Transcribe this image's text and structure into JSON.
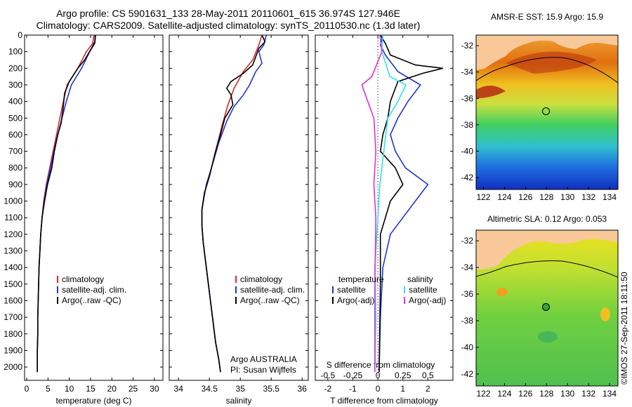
{
  "title_line1": "Argo profile: CS 5901631_133 28-May-2011 20110601_615 36.974S 127.946E",
  "title_line2": "Climatology: CARS2009. Satellite-adjusted climatology: synTS_20110530.nc (1.3d later)",
  "stamp": "©IMOS 27-Sep-2011 18:11:50",
  "colors": {
    "climatology": "#d62a2a",
    "satellite": "#1f35d6",
    "argo": "#000000",
    "magenta": "#e030e0",
    "cyan": "#30e0e8"
  },
  "chart_data": [
    {
      "type": "line",
      "name": "temperature-panel",
      "xlabel": "temperature (deg C)",
      "ylabel": "",
      "xlim": [
        -0.5,
        32
      ],
      "ylim": [
        0,
        2080
      ],
      "xticks": [
        0,
        5,
        10,
        15,
        20,
        25,
        30
      ],
      "yticks": [
        0,
        100,
        200,
        300,
        400,
        500,
        600,
        700,
        800,
        900,
        1000,
        1100,
        1200,
        1300,
        1400,
        1500,
        1600,
        1700,
        1800,
        1900,
        2000
      ],
      "legend": [
        "climatology",
        "satellite-adj. clim.",
        "Argo(..raw -QC)"
      ],
      "legend_position": "lower-center",
      "series": [
        {
          "name": "climatology",
          "color_key": "climatology",
          "points": [
            [
              15.8,
              0
            ],
            [
              15.5,
              50
            ],
            [
              14,
              100
            ],
            [
              12,
              200
            ],
            [
              9.5,
              300
            ],
            [
              8.6,
              400
            ],
            [
              7.8,
              500
            ],
            [
              7,
              600
            ],
            [
              6.2,
              700
            ],
            [
              5.4,
              800
            ],
            [
              4.6,
              900
            ],
            [
              4,
              1000
            ],
            [
              3.6,
              1100
            ],
            [
              3.3,
              1200
            ],
            [
              3.1,
              1300
            ],
            [
              2.9,
              1400
            ],
            [
              2.8,
              1500
            ],
            [
              2.7,
              1600
            ],
            [
              2.6,
              1700
            ],
            [
              2.6,
              1800
            ],
            [
              2.5,
              1900
            ],
            [
              2.5,
              2030
            ]
          ]
        },
        {
          "name": "satellite-adj. clim.",
          "color_key": "satellite",
          "points": [
            [
              16.2,
              0
            ],
            [
              16,
              50
            ],
            [
              14.8,
              100
            ],
            [
              12.9,
              200
            ],
            [
              10.5,
              300
            ],
            [
              9.3,
              400
            ],
            [
              8.3,
              500
            ],
            [
              7.3,
              600
            ],
            [
              6.4,
              700
            ],
            [
              5.6,
              800
            ],
            [
              4.7,
              900
            ],
            [
              4.1,
              1000
            ],
            [
              3.6,
              1100
            ],
            [
              3.3,
              1200
            ],
            [
              3.1,
              1300
            ],
            [
              2.9,
              1400
            ],
            [
              2.8,
              1500
            ],
            [
              2.7,
              1600
            ],
            [
              2.6,
              1700
            ],
            [
              2.6,
              1800
            ],
            [
              2.5,
              1900
            ],
            [
              2.5,
              2030
            ]
          ]
        },
        {
          "name": "Argo(..raw -QC)",
          "color_key": "argo",
          "points": [
            [
              16.1,
              0
            ],
            [
              16,
              40
            ],
            [
              15.2,
              80
            ],
            [
              13.6,
              150
            ],
            [
              12,
              200
            ],
            [
              10,
              280
            ],
            [
              8.9,
              350
            ],
            [
              8.5,
              450
            ],
            [
              8.1,
              530
            ],
            [
              7.3,
              600
            ],
            [
              6.5,
              700
            ],
            [
              5.9,
              800
            ],
            [
              4.9,
              900
            ],
            [
              4.2,
              1000
            ],
            [
              3.6,
              1100
            ],
            [
              3.3,
              1200
            ],
            [
              3.1,
              1300
            ],
            [
              2.9,
              1400
            ],
            [
              2.8,
              1500
            ],
            [
              2.7,
              1600
            ],
            [
              2.6,
              1700
            ],
            [
              2.6,
              1800
            ],
            [
              2.5,
              1900
            ],
            [
              2.5,
              2030
            ]
          ]
        }
      ]
    },
    {
      "type": "line",
      "name": "salinity-panel",
      "xlabel": "salinity",
      "xlim": [
        33.85,
        36.1
      ],
      "ylim": [
        0,
        2080
      ],
      "xticks": [
        34,
        34.5,
        35,
        35.5,
        36
      ],
      "yticks": [
        0,
        100,
        200,
        300,
        400,
        500,
        600,
        700,
        800,
        900,
        1000,
        1100,
        1200,
        1300,
        1400,
        1500,
        1600,
        1700,
        1800,
        1900,
        2000
      ],
      "legend": [
        "climatology",
        "satellite-adj. clim.",
        "Argo(..raw -QC)"
      ],
      "legend_position": "lower-center",
      "annotation": [
        "Argo AUSTRALIA",
        "PI: Susan Wijffels"
      ],
      "series": [
        {
          "name": "climatology",
          "color_key": "climatology",
          "points": [
            [
              35.35,
              0
            ],
            [
              35.3,
              60
            ],
            [
              35.2,
              150
            ],
            [
              35.05,
              220
            ],
            [
              34.9,
              320
            ],
            [
              34.8,
              420
            ],
            [
              34.7,
              550
            ],
            [
              34.6,
              700
            ],
            [
              34.5,
              850
            ],
            [
              34.42,
              950
            ],
            [
              34.38,
              1050
            ],
            [
              34.38,
              1150
            ],
            [
              34.4,
              1250
            ],
            [
              34.45,
              1400
            ],
            [
              34.5,
              1550
            ],
            [
              34.55,
              1700
            ],
            [
              34.6,
              1850
            ],
            [
              34.65,
              1950
            ],
            [
              34.68,
              2030
            ]
          ]
        },
        {
          "name": "satellite-adj. clim.",
          "color_key": "satellite",
          "points": [
            [
              35.42,
              0
            ],
            [
              35.38,
              60
            ],
            [
              35.3,
              100
            ],
            [
              35.35,
              170
            ],
            [
              35.25,
              220
            ],
            [
              35.15,
              300
            ],
            [
              35.05,
              360
            ],
            [
              34.9,
              430
            ],
            [
              34.78,
              520
            ],
            [
              34.65,
              650
            ],
            [
              34.55,
              780
            ],
            [
              34.45,
              900
            ],
            [
              34.38,
              1050
            ],
            [
              34.38,
              1150
            ],
            [
              34.4,
              1250
            ],
            [
              34.45,
              1400
            ],
            [
              34.5,
              1550
            ],
            [
              34.55,
              1700
            ],
            [
              34.6,
              1850
            ],
            [
              34.65,
              1950
            ],
            [
              34.68,
              2030
            ]
          ]
        },
        {
          "name": "Argo(..raw -QC)",
          "color_key": "argo",
          "points": [
            [
              35.35,
              0
            ],
            [
              35.4,
              40
            ],
            [
              35.3,
              80
            ],
            [
              35.25,
              130
            ],
            [
              35.2,
              180
            ],
            [
              35.05,
              230
            ],
            [
              34.85,
              280
            ],
            [
              34.78,
              320
            ],
            [
              34.85,
              360
            ],
            [
              34.88,
              420
            ],
            [
              34.75,
              500
            ],
            [
              34.68,
              600
            ],
            [
              34.6,
              700
            ],
            [
              34.5,
              850
            ],
            [
              34.42,
              950
            ],
            [
              34.38,
              1050
            ],
            [
              34.38,
              1150
            ],
            [
              34.4,
              1250
            ],
            [
              34.45,
              1400
            ],
            [
              34.5,
              1550
            ],
            [
              34.55,
              1700
            ],
            [
              34.6,
              1850
            ],
            [
              34.65,
              1950
            ],
            [
              34.68,
              2030
            ]
          ]
        }
      ]
    },
    {
      "type": "line",
      "name": "difference-panel",
      "xlabel_bottom": "T difference from climatology",
      "xlabel_top": "S difference from climatology",
      "xlim": [
        -2.5,
        3
      ],
      "ylim": [
        0,
        2080
      ],
      "xticks": [
        -2,
        -1,
        0,
        1,
        2
      ],
      "xtick_labels": [
        "-2",
        "-1",
        "0",
        "1",
        "2"
      ],
      "s_ticks": [
        -0.5,
        -0.25,
        0,
        0.25,
        0.5
      ],
      "s_tick_labels": [
        "-0.5",
        "-0.25",
        "0",
        "0.25",
        "0.5"
      ],
      "yticks": [
        0,
        100,
        200,
        300,
        400,
        500,
        600,
        700,
        800,
        900,
        1000,
        1100,
        1200,
        1300,
        1400,
        1500,
        1600,
        1700,
        1800,
        1900,
        2000
      ],
      "legend_left_title": "temperature",
      "legend_right_title": "salinity",
      "legend_left": [
        "satellite",
        "Argo(-adj)"
      ],
      "legend_right": [
        "satellite",
        "Argo(-adj)"
      ],
      "series": [
        {
          "name": "T satellite",
          "color_key": "satellite",
          "points": [
            [
              0.2,
              0
            ],
            [
              0.1,
              60
            ],
            [
              0.3,
              120
            ],
            [
              0.8,
              220
            ],
            [
              1.7,
              300
            ],
            [
              1.2,
              400
            ],
            [
              0.8,
              500
            ],
            [
              0.5,
              600
            ],
            [
              0.7,
              700
            ],
            [
              1.1,
              800
            ],
            [
              2.0,
              900
            ],
            [
              1.5,
              1000
            ],
            [
              0.5,
              1200
            ],
            [
              0.2,
              1400
            ],
            [
              0.1,
              1700
            ],
            [
              0.05,
              2030
            ]
          ]
        },
        {
          "name": "T Argo(-adj)",
          "color_key": "argo",
          "points": [
            [
              0.1,
              0
            ],
            [
              0.3,
              50
            ],
            [
              0.5,
              120
            ],
            [
              1.5,
              180
            ],
            [
              2.6,
              200
            ],
            [
              1.8,
              230
            ],
            [
              0.8,
              280
            ],
            [
              0.5,
              400
            ],
            [
              0.4,
              500
            ],
            [
              0.2,
              600
            ],
            [
              0.1,
              700
            ],
            [
              0.7,
              800
            ],
            [
              1.0,
              900
            ],
            [
              0.5,
              1000
            ],
            [
              0.1,
              1200
            ],
            [
              0.1,
              1500
            ],
            [
              0.05,
              2030
            ]
          ]
        },
        {
          "name": "S satellite",
          "color_key": "cyan",
          "points": [
            [
              0.05,
              0
            ],
            [
              0.04,
              100
            ],
            [
              0.12,
              250
            ],
            [
              0.28,
              300
            ],
            [
              0.2,
              400
            ],
            [
              0.1,
              500
            ],
            [
              0.06,
              700
            ],
            [
              0.02,
              900
            ],
            [
              0,
              1100
            ],
            [
              -0.03,
              1400
            ],
            [
              -0.02,
              1700
            ],
            [
              -0.03,
              2030
            ]
          ]
        },
        {
          "name": "S Argo(-adj)",
          "color_key": "magenta",
          "points": [
            [
              0.02,
              0
            ],
            [
              0.04,
              100
            ],
            [
              -0.06,
              250
            ],
            [
              -0.16,
              300
            ],
            [
              -0.1,
              400
            ],
            [
              -0.04,
              500
            ],
            [
              -0.02,
              700
            ],
            [
              -0.04,
              900
            ],
            [
              -0.02,
              1100
            ],
            [
              -0.03,
              1500
            ],
            [
              -0.03,
              2030
            ]
          ]
        }
      ]
    }
  ],
  "maps": [
    {
      "name": "sst-map",
      "title": "AMSR-E SST: 15.9 Argo: 15.9",
      "lon_ticks": [
        122,
        124,
        126,
        128,
        130,
        132,
        134
      ],
      "lat_ticks": [
        -32,
        -34,
        -36,
        -38,
        -40,
        -42
      ],
      "float_position": [
        127.95,
        -36.97
      ]
    },
    {
      "name": "sla-map",
      "title": "Altimetric SLA: 0.12 Argo: 0.053",
      "lon_ticks": [
        122,
        124,
        126,
        128,
        130,
        132,
        134
      ],
      "lat_ticks": [
        -32,
        -34,
        -36,
        -38,
        -40,
        -42
      ],
      "float_position": [
        127.95,
        -36.97
      ]
    }
  ]
}
